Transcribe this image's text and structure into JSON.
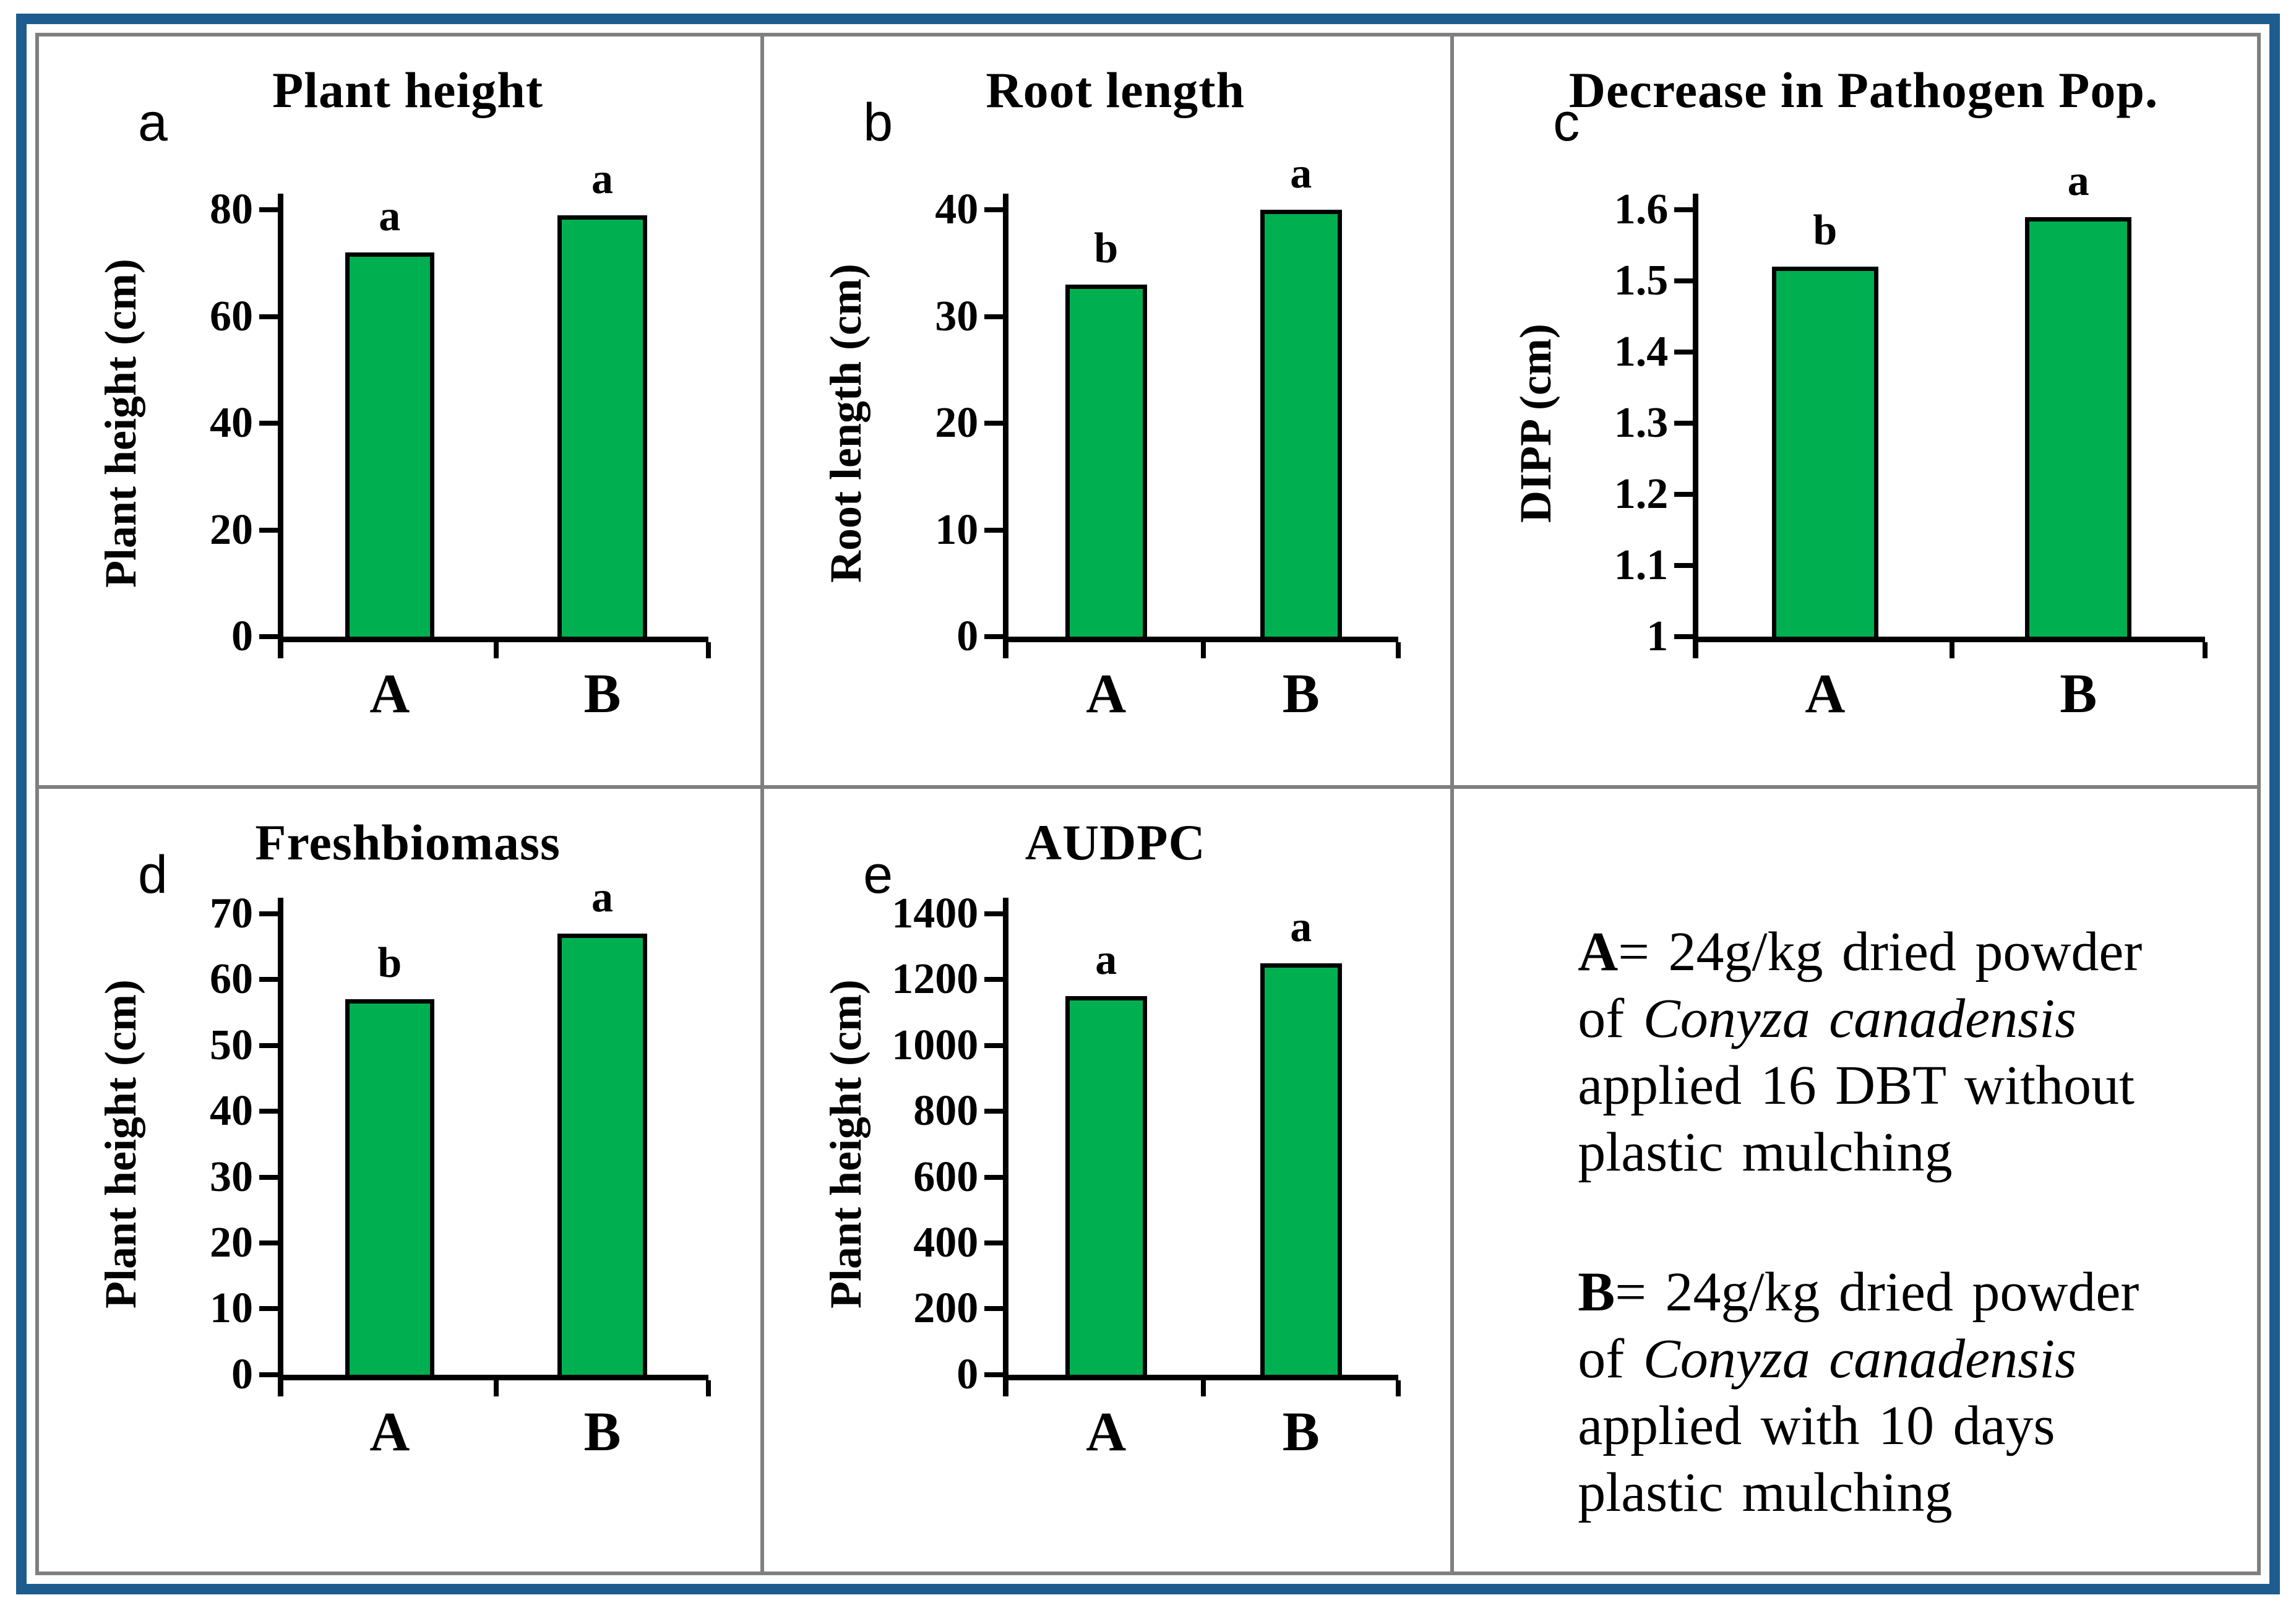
{
  "figure": {
    "frame_color": "#1E5C90",
    "panel_border_color": "#7F7F7F",
    "background": "#FFFFFF"
  },
  "colors": {
    "bar_fill": "#00B050",
    "bar_border": "#000000",
    "text": "#000000"
  },
  "chart_data": [
    {
      "type": "bar",
      "panel_letter": "a",
      "title": "Plant height",
      "ylabel": "Plant height (cm)",
      "categories": [
        "A",
        "B"
      ],
      "values": [
        72,
        79
      ],
      "bar_labels": [
        "a",
        "a"
      ],
      "ylim": [
        0,
        80
      ],
      "ytick_values": [
        0,
        20,
        40,
        60,
        80
      ],
      "ytick_labels": [
        "0",
        "20",
        "40",
        "60",
        "80"
      ],
      "grid": "off",
      "legend_position": "none"
    },
    {
      "type": "bar",
      "panel_letter": "b",
      "title": "Root length",
      "ylabel": "Root length (cm)",
      "categories": [
        "A",
        "B"
      ],
      "values": [
        33,
        40
      ],
      "bar_labels": [
        "b",
        "a"
      ],
      "ylim": [
        0,
        40
      ],
      "ytick_values": [
        0,
        10,
        20,
        30,
        40
      ],
      "ytick_labels": [
        "0",
        "10",
        "20",
        "30",
        "40"
      ],
      "grid": "off",
      "legend_position": "none"
    },
    {
      "type": "bar",
      "panel_letter": "c",
      "title": "Decrease in Pathogen Pop.",
      "ylabel": "DIPP (cm)",
      "categories": [
        "A",
        "B"
      ],
      "values": [
        1.52,
        1.59
      ],
      "bar_labels": [
        "b",
        "a"
      ],
      "ylim": [
        1,
        1.6
      ],
      "ytick_values": [
        1,
        1.1,
        1.2,
        1.3,
        1.4,
        1.5,
        1.6
      ],
      "ytick_labels": [
        "1",
        "1.1",
        "1.2",
        "1.3",
        "1.4",
        "1.5",
        "1.6"
      ],
      "grid": "off",
      "legend_position": "none"
    },
    {
      "type": "bar",
      "panel_letter": "d",
      "title": "Freshbiomass",
      "ylabel": "Plant height (cm)",
      "categories": [
        "A",
        "B"
      ],
      "values": [
        57,
        67
      ],
      "bar_labels": [
        "b",
        "a"
      ],
      "ylim": [
        0,
        70
      ],
      "ytick_values": [
        0,
        10,
        20,
        30,
        40,
        50,
        60,
        70
      ],
      "ytick_labels": [
        "0",
        "10",
        "20",
        "30",
        "40",
        "50",
        "60",
        "70"
      ],
      "grid": "off",
      "legend_position": "none"
    },
    {
      "type": "bar",
      "panel_letter": "e",
      "title": "AUDPC",
      "ylabel": "Plant height (cm)",
      "categories": [
        "A",
        "B"
      ],
      "values": [
        1150,
        1250
      ],
      "bar_labels": [
        "a",
        "a"
      ],
      "ylim": [
        0,
        1400
      ],
      "ytick_values": [
        0,
        200,
        400,
        600,
        800,
        1000,
        1200,
        1400
      ],
      "ytick_labels": [
        "0",
        "200",
        "400",
        "600",
        "800",
        "1000",
        "1200",
        "1400"
      ],
      "grid": "off",
      "legend_position": "none"
    }
  ],
  "legend": {
    "items": [
      {
        "runs": [
          {
            "text": "A",
            "bold": true
          },
          {
            "text": "= 24g/kg dried powder of "
          },
          {
            "text": "Conyza canadensis",
            "italic": true
          },
          {
            "text": " applied 16 DBT without plastic mulching"
          }
        ]
      },
      {
        "runs": [
          {
            "text": "B",
            "bold": true
          },
          {
            "text": "= 24g/kg dried powder of "
          },
          {
            "text": "Conyza canadensis",
            "italic": true
          },
          {
            "text": " applied with 10 days plastic mulching"
          }
        ]
      }
    ]
  }
}
